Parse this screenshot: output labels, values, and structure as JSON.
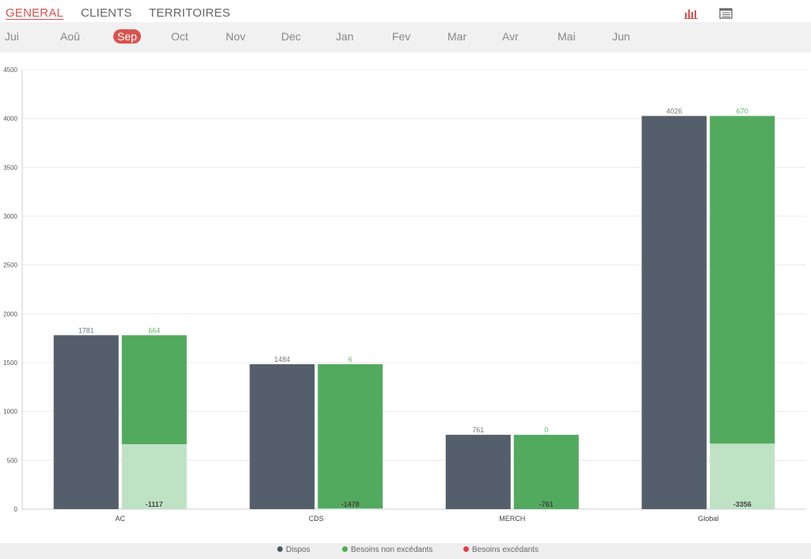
{
  "nav": {
    "tabs": [
      {
        "label": "GENERAL",
        "active": true
      },
      {
        "label": "CLIENTS",
        "active": false
      },
      {
        "label": "TERRITOIRES",
        "active": false
      }
    ],
    "icons": [
      "bar-chart-icon",
      "table-list-icon"
    ]
  },
  "months": [
    {
      "label": "Jui",
      "active": false
    },
    {
      "label": "Aoû",
      "active": false
    },
    {
      "label": "Sep",
      "active": true
    },
    {
      "label": "Oct",
      "active": false
    },
    {
      "label": "Nov",
      "active": false
    },
    {
      "label": "Dec",
      "active": false
    },
    {
      "label": "Jan",
      "active": false
    },
    {
      "label": "Fev",
      "active": false
    },
    {
      "label": "Mar",
      "active": false
    },
    {
      "label": "Avr",
      "active": false
    },
    {
      "label": "Mai",
      "active": false
    },
    {
      "label": "Jun",
      "active": false
    }
  ],
  "legend": [
    {
      "label": "Dispos",
      "color": "#4a5568"
    },
    {
      "label": "Besoins non excédants",
      "color": "#4caf50"
    },
    {
      "label": "Besoins excédants",
      "color": "#e53e3e"
    }
  ],
  "colors": {
    "accent": "#d9534f",
    "dispos": "#555f6b",
    "green": "#52aa5e",
    "light_green": "#bfe2c5"
  },
  "chart_data": {
    "type": "bar",
    "categories": [
      "AC",
      "CDS",
      "MERCH",
      "Global"
    ],
    "ylim": [
      0,
      4500
    ],
    "yticks": [
      0,
      500,
      1000,
      1500,
      2000,
      2500,
      3000,
      3500,
      4000,
      4500
    ],
    "grid": true,
    "series": [
      {
        "name": "Dispos",
        "values": [
          1781,
          1484,
          761,
          4026
        ],
        "labels": [
          "1781",
          "1484",
          "761",
          "4026"
        ]
      },
      {
        "name": "Besoins non excédants",
        "values": [
          664,
          6,
          0,
          670
        ],
        "labels": [
          "664",
          "6",
          "0",
          "670"
        ]
      },
      {
        "remaining_values": [
          1117,
          1478,
          761,
          3356
        ],
        "labels": [
          "-1117",
          "-1478",
          "-761",
          "-3356"
        ]
      }
    ]
  }
}
